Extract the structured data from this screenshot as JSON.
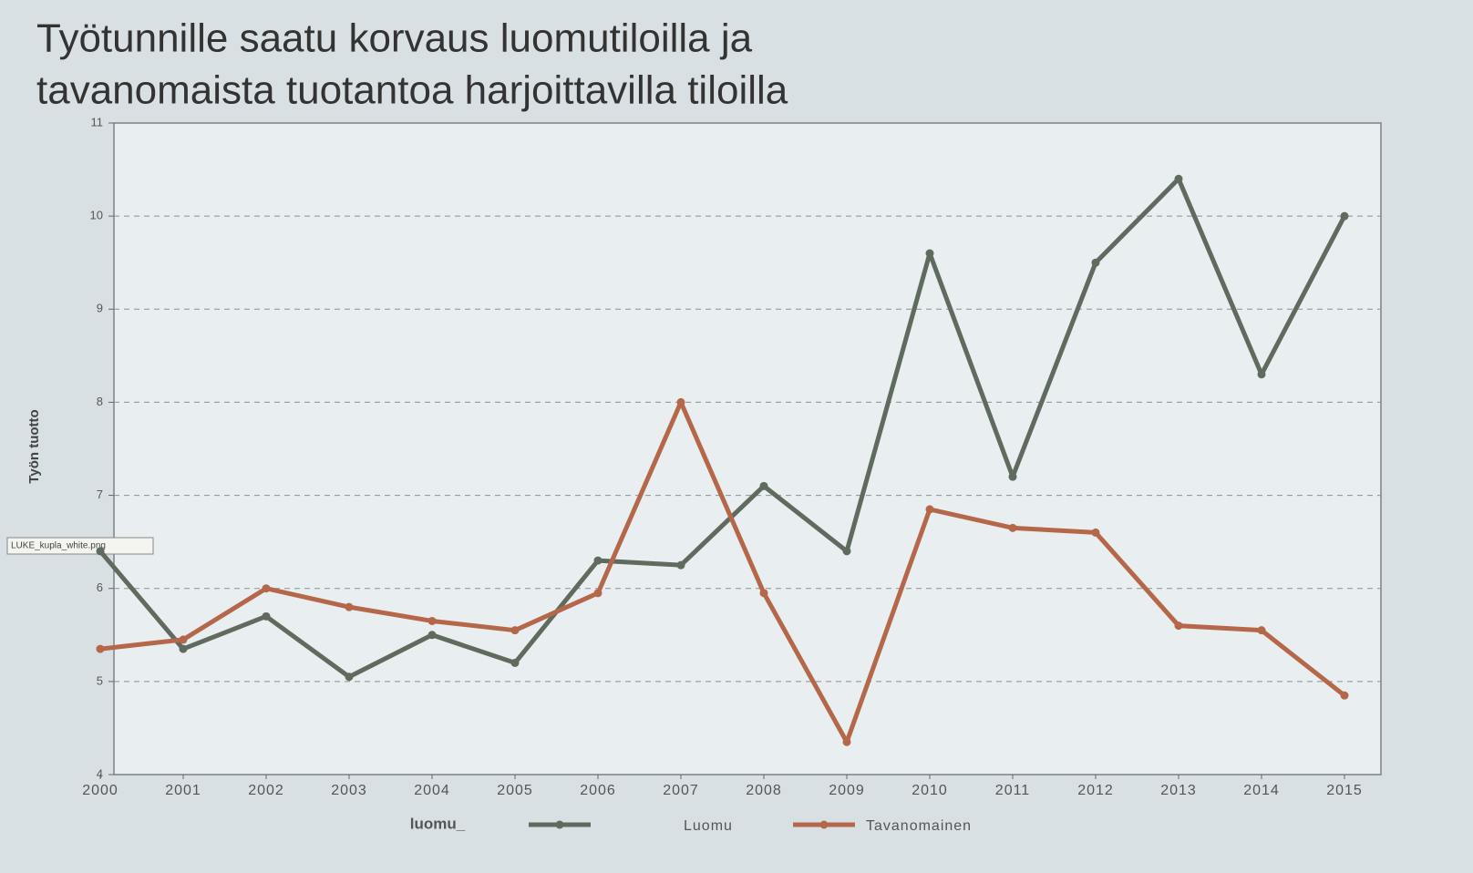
{
  "chart_data": {
    "type": "line",
    "title": "Työtunnille saatu korvaus luomutiloilla ja tavanomaista tuotantoa harjoittavilla tiloilla",
    "y_label": "Työn tuotto",
    "legend_title": "luomu_",
    "overlay_label": "LUKE_kupla_white.png",
    "categories": [
      "2000",
      "2001",
      "2002",
      "2003",
      "2004",
      "2005",
      "2006",
      "2007",
      "2008",
      "2009",
      "2010",
      "2011",
      "2012",
      "2013",
      "2014",
      "2015"
    ],
    "series": [
      {
        "name": "Luomu",
        "color": "#5e6b5e",
        "values": [
          6.4,
          5.35,
          5.7,
          5.05,
          5.5,
          5.2,
          6.3,
          6.25,
          7.1,
          6.4,
          9.6,
          7.2,
          9.5,
          10.4,
          8.3,
          10.0
        ]
      },
      {
        "name": "Tavanomainen",
        "color": "#b5674a",
        "values": [
          5.35,
          5.45,
          6.0,
          5.8,
          5.65,
          5.55,
          5.95,
          8.0,
          5.95,
          4.35,
          6.85,
          6.65,
          6.6,
          5.6,
          5.55,
          4.85
        ]
      }
    ],
    "ylim": [
      4,
      11
    ],
    "yticks": [
      4,
      5,
      6,
      7,
      8,
      9,
      10,
      11
    ],
    "grid": true
  }
}
